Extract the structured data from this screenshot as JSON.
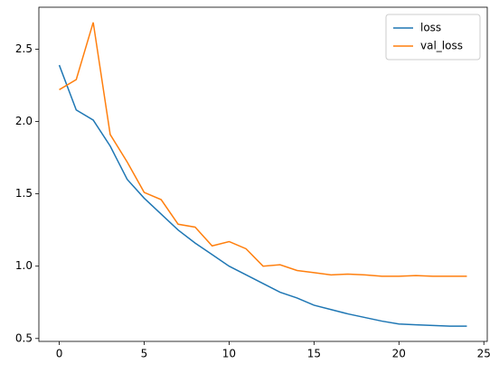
{
  "chart_data": {
    "type": "line",
    "x": [
      0,
      1,
      2,
      3,
      4,
      5,
      6,
      7,
      8,
      9,
      10,
      11,
      12,
      13,
      14,
      15,
      16,
      17,
      18,
      19,
      20,
      21,
      22,
      23,
      24
    ],
    "series": [
      {
        "name": "loss",
        "color": "#1f77b4",
        "values": [
          2.39,
          2.08,
          2.01,
          1.83,
          1.6,
          1.47,
          1.36,
          1.25,
          1.16,
          1.08,
          1.0,
          0.94,
          0.88,
          0.82,
          0.78,
          0.73,
          0.7,
          0.67,
          0.645,
          0.62,
          0.6,
          0.595,
          0.59,
          0.585,
          0.585
        ]
      },
      {
        "name": "val_loss",
        "color": "#ff7f0e",
        "values": [
          2.22,
          2.29,
          2.685,
          1.91,
          1.72,
          1.51,
          1.46,
          1.29,
          1.27,
          1.14,
          1.17,
          1.12,
          1.0,
          1.01,
          0.97,
          0.955,
          0.94,
          0.945,
          0.94,
          0.93,
          0.93,
          0.935,
          0.93,
          0.93,
          0.93
        ]
      }
    ],
    "xlim": [
      -1.2,
      25.2
    ],
    "xticks": [
      0,
      5,
      10,
      15,
      20,
      25
    ],
    "ylim": [
      0.48,
      2.79
    ],
    "yticks": [
      {
        "value": 0.5,
        "label": "0.5"
      },
      {
        "value": 1.0,
        "label": "1.0"
      },
      {
        "value": 1.5,
        "label": "1.5"
      },
      {
        "value": 2.0,
        "label": "2.0"
      },
      {
        "value": 2.5,
        "label": "2.5"
      }
    ],
    "legend": "upper right"
  }
}
